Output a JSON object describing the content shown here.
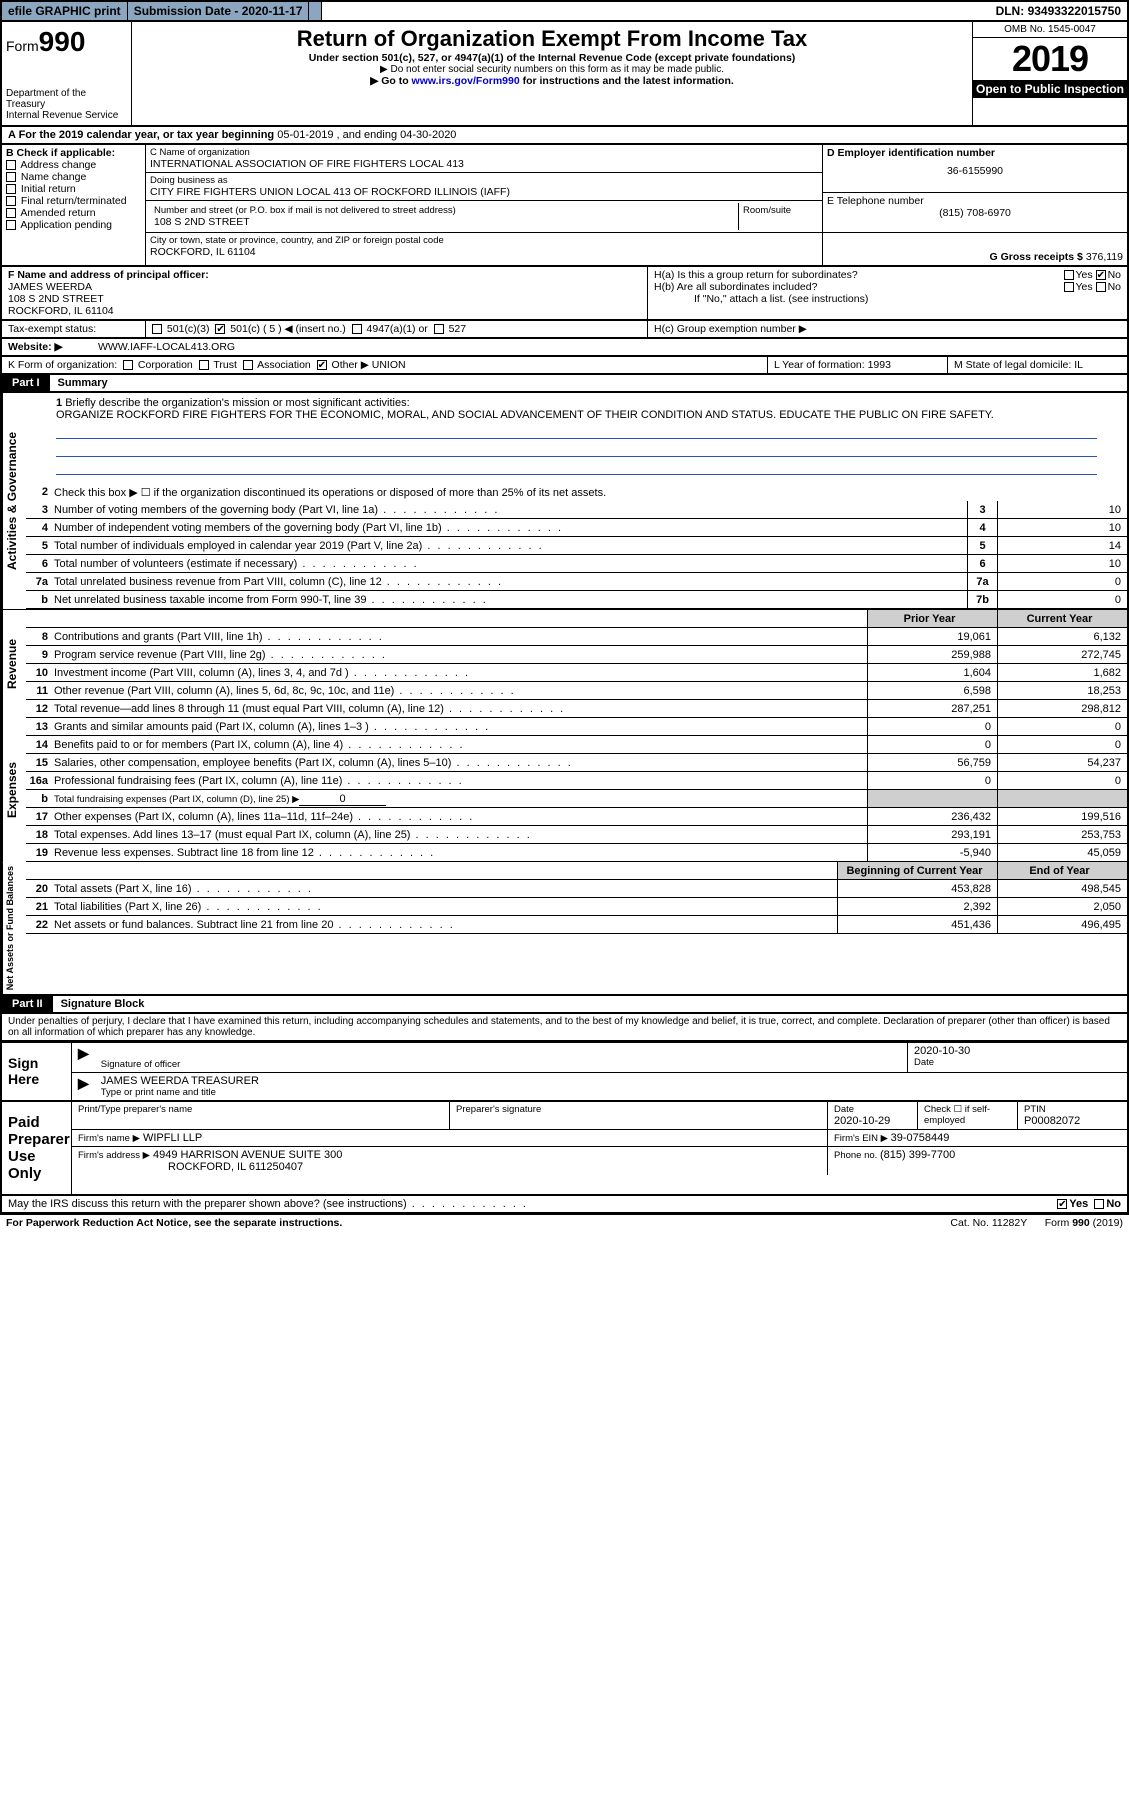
{
  "topbar": {
    "efile": "efile GRAPHIC print",
    "subdate_label": "Submission Date - ",
    "subdate": "2020-11-17",
    "dln_label": "DLN: ",
    "dln": "93493322015750"
  },
  "header": {
    "form": "Form",
    "num": "990",
    "title": "Return of Organization Exempt From Income Tax",
    "sub": "Under section 501(c), 527, or 4947(a)(1) of the Internal Revenue Code (except private foundations)",
    "sub2": "▶ Do not enter social security numbers on this form as it may be made public.",
    "sub3_a": "▶ Go to ",
    "sub3_link": "www.irs.gov/Form990",
    "sub3_b": " for instructions and the latest information.",
    "dept": "Department of the Treasury",
    "irs": "Internal Revenue Service",
    "omb": "OMB No. 1545-0047",
    "year": "2019",
    "open": "Open to Public Inspection"
  },
  "period": {
    "a": "A For the 2019 calendar year, or tax year beginning ",
    "b": "05-01-2019",
    "c": "   , and ending ",
    "d": "04-30-2020"
  },
  "B": {
    "hdr": "B Check if applicable:",
    "items": [
      "Address change",
      "Name change",
      "Initial return",
      "Final return/terminated",
      "Amended return",
      "Application pending"
    ]
  },
  "C": {
    "name_label": "C Name of organization",
    "name": "INTERNATIONAL ASSOCIATION OF FIRE FIGHTERS LOCAL 413",
    "dba_label": "Doing business as",
    "dba": "CITY FIRE FIGHTERS UNION LOCAL 413 OF ROCKFORD ILLINOIS (IAFF)",
    "street_label": "Number and street (or P.O. box if mail is not delivered to street address)",
    "room_label": "Room/suite",
    "street": "108 S 2ND STREET",
    "city_label": "City or town, state or province, country, and ZIP or foreign postal code",
    "city": "ROCKFORD, IL  61104"
  },
  "D": {
    "label": "D Employer identification number",
    "val": "36-6155990"
  },
  "E": {
    "label": "E Telephone number",
    "val": "(815) 708-6970"
  },
  "G": {
    "label": "G Gross receipts $ ",
    "val": "376,119"
  },
  "F": {
    "label": "F  Name and address of principal officer:",
    "name": "JAMES WEERDA",
    "l1": "108 S 2ND STREET",
    "l2": "ROCKFORD, IL  61104"
  },
  "H": {
    "a": "H(a)  Is this a group return for subordinates?",
    "b": "H(b)  Are all subordinates included?",
    "note": "If \"No,\" attach a list. (see instructions)",
    "c": "H(c)  Group exemption number ▶",
    "yes": "Yes",
    "no": "No"
  },
  "I": {
    "label": "Tax-exempt status:",
    "a": "501(c)(3)",
    "b": "501(c) ( 5 ) ◀ (insert no.)",
    "c": "4947(a)(1) or",
    "d": "527"
  },
  "J": {
    "label": "Website: ▶",
    "val": " WWW.IAFF-LOCAL413.ORG"
  },
  "K": {
    "label": "K Form of organization:",
    "opts": [
      "Corporation",
      "Trust",
      "Association",
      "Other ▶"
    ],
    "other": "UNION"
  },
  "L": {
    "label": "L Year of formation: ",
    "val": "1993"
  },
  "M": {
    "label": "M State of legal domicile: ",
    "val": "IL"
  },
  "part1": {
    "bar": "Part I",
    "title": "Summary"
  },
  "mission": {
    "num": "1",
    "label": "Briefly describe the organization's mission or most significant activities:",
    "text": "ORGANIZE ROCKFORD FIRE FIGHTERS FOR THE ECONOMIC, MORAL, AND SOCIAL ADVANCEMENT OF THEIR CONDITION AND STATUS. EDUCATE THE PUBLIC ON FIRE SAFETY."
  },
  "act": {
    "side": "Activities & Governance",
    "l2": "Check this box ▶ ☐  if the organization discontinued its operations or disposed of more than 25% of its net assets.",
    "rows": [
      {
        "n": "3",
        "d": "Number of voting members of the governing body (Part VI, line 1a)",
        "b": "3",
        "v": "10"
      },
      {
        "n": "4",
        "d": "Number of independent voting members of the governing body (Part VI, line 1b)",
        "b": "4",
        "v": "10"
      },
      {
        "n": "5",
        "d": "Total number of individuals employed in calendar year 2019 (Part V, line 2a)",
        "b": "5",
        "v": "14"
      },
      {
        "n": "6",
        "d": "Total number of volunteers (estimate if necessary)",
        "b": "6",
        "v": "10"
      },
      {
        "n": "7a",
        "d": "Total unrelated business revenue from Part VIII, column (C), line 12",
        "b": "7a",
        "v": "0"
      },
      {
        "n": "b",
        "d": "Net unrelated business taxable income from Form 990-T, line 39",
        "b": "7b",
        "v": "0"
      }
    ]
  },
  "hdrPY": "Prior Year",
  "hdrCY": "Current Year",
  "rev": {
    "side": "Revenue",
    "rows": [
      {
        "n": "8",
        "d": "Contributions and grants (Part VIII, line 1h)",
        "py": "19,061",
        "cy": "6,132"
      },
      {
        "n": "9",
        "d": "Program service revenue (Part VIII, line 2g)",
        "py": "259,988",
        "cy": "272,745"
      },
      {
        "n": "10",
        "d": "Investment income (Part VIII, column (A), lines 3, 4, and 7d )",
        "py": "1,604",
        "cy": "1,682"
      },
      {
        "n": "11",
        "d": "Other revenue (Part VIII, column (A), lines 5, 6d, 8c, 9c, 10c, and 11e)",
        "py": "6,598",
        "cy": "18,253"
      },
      {
        "n": "12",
        "d": "Total revenue—add lines 8 through 11 (must equal Part VIII, column (A), line 12)",
        "py": "287,251",
        "cy": "298,812"
      }
    ]
  },
  "exp": {
    "side": "Expenses",
    "rows": [
      {
        "n": "13",
        "d": "Grants and similar amounts paid (Part IX, column (A), lines 1–3 )",
        "py": "0",
        "cy": "0"
      },
      {
        "n": "14",
        "d": "Benefits paid to or for members (Part IX, column (A), line 4)",
        "py": "0",
        "cy": "0"
      },
      {
        "n": "15",
        "d": "Salaries, other compensation, employee benefits (Part IX, column (A), lines 5–10)",
        "py": "56,759",
        "cy": "54,237"
      },
      {
        "n": "16a",
        "d": "Professional fundraising fees (Part IX, column (A), line 11e)",
        "py": "0",
        "cy": "0"
      }
    ],
    "l16b": {
      "n": "b",
      "d": "Total fundraising expenses (Part IX, column (D), line 25) ▶",
      "v": "0"
    },
    "rows2": [
      {
        "n": "17",
        "d": "Other expenses (Part IX, column (A), lines 11a–11d, 11f–24e)",
        "py": "236,432",
        "cy": "199,516"
      },
      {
        "n": "18",
        "d": "Total expenses. Add lines 13–17 (must equal Part IX, column (A), line 25)",
        "py": "293,191",
        "cy": "253,753"
      },
      {
        "n": "19",
        "d": "Revenue less expenses. Subtract line 18 from line 12",
        "py": "-5,940",
        "cy": "45,059"
      }
    ]
  },
  "net": {
    "side": "Net Assets or Fund Balances",
    "hdrB": "Beginning of Current Year",
    "hdrE": "End of Year",
    "rows": [
      {
        "n": "20",
        "d": "Total assets (Part X, line 16)",
        "b": "453,828",
        "e": "498,545"
      },
      {
        "n": "21",
        "d": "Total liabilities (Part X, line 26)",
        "b": "2,392",
        "e": "2,050"
      },
      {
        "n": "22",
        "d": "Net assets or fund balances. Subtract line 21 from line 20",
        "b": "451,436",
        "e": "496,495"
      }
    ]
  },
  "part2": {
    "bar": "Part II",
    "title": "Signature Block"
  },
  "jurat": "Under penalties of perjury, I declare that I have examined this return, including accompanying schedules and statements, and to the best of my knowledge and belief, it is true, correct, and complete. Declaration of preparer (other than officer) is based on all information of which preparer has any knowledge.",
  "sign": {
    "here": "Sign Here",
    "sig_label": "Signature of officer",
    "date_label": "Date",
    "date": "2020-10-30",
    "name": "JAMES WEERDA  TREASURER",
    "name_label": "Type or print name and title"
  },
  "paid": {
    "label": "Paid Preparer Use Only",
    "h1": "Print/Type preparer's name",
    "h2": "Preparer's signature",
    "h3": "Date",
    "h3v": "2020-10-29",
    "h4": "Check ☐ if self-employed",
    "h5": "PTIN",
    "ptin": "P00082072",
    "firm_label": "Firm's name   ▶",
    "firm": "WIPFLI LLP",
    "ein_label": "Firm's EIN ▶ ",
    "ein": "39-0758449",
    "addr_label": "Firm's address ▶",
    "addr1": "4949 HARRISON AVENUE SUITE 300",
    "addr2": "ROCKFORD, IL  611250407",
    "phone_label": "Phone no. ",
    "phone": "(815) 399-7700"
  },
  "discuss": {
    "q": "May the IRS discuss this return with the preparer shown above? (see instructions)",
    "yes": "Yes",
    "no": "No"
  },
  "footer": {
    "l": "For Paperwork Reduction Act Notice, see the separate instructions.",
    "m": "Cat. No. 11282Y",
    "r": "Form 990 (2019)"
  }
}
